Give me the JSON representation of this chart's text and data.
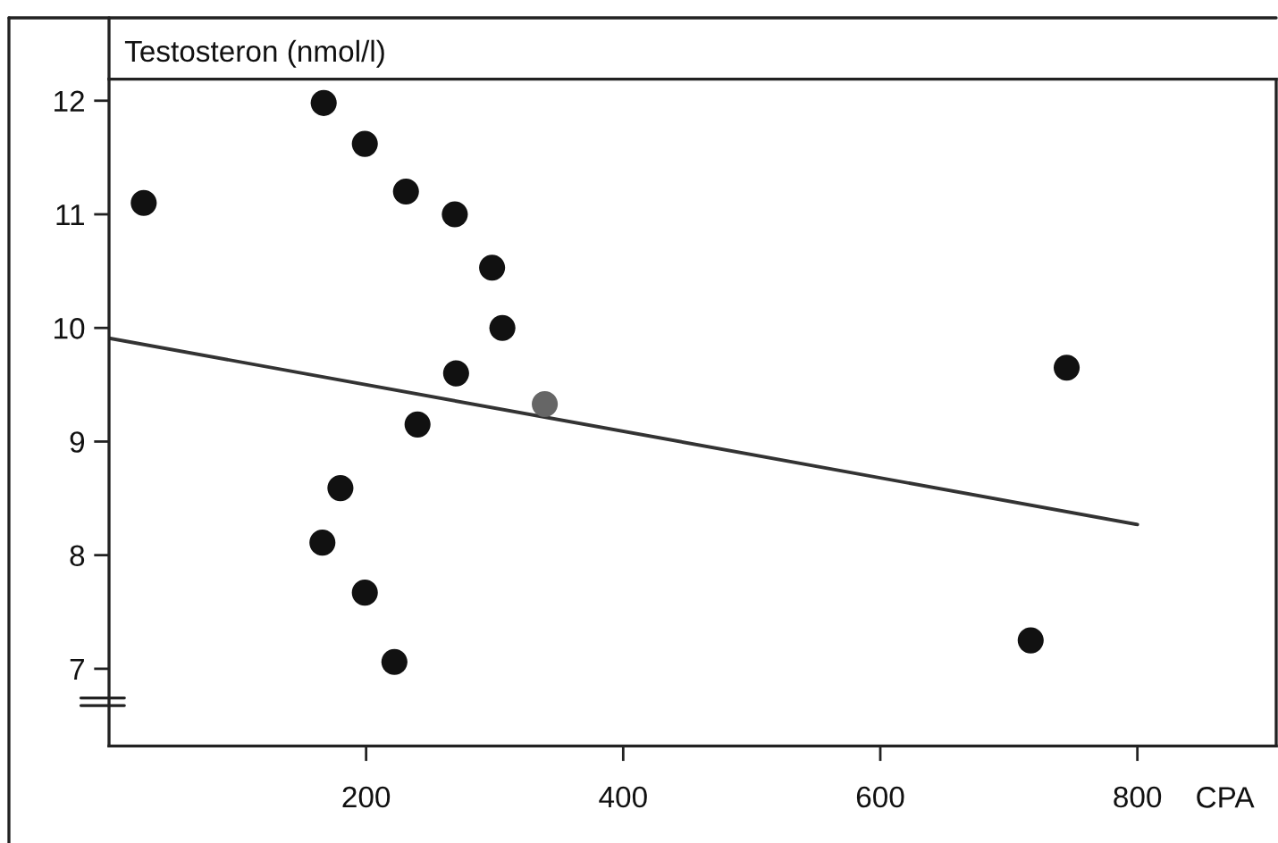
{
  "chart_data": {
    "type": "scatter",
    "ylabel": "Testosteron (nmol/l)",
    "xlabel": "CPA",
    "xlim": [
      0,
      908
    ],
    "xticks": [
      200,
      400,
      600,
      800
    ],
    "ylim": [
      6.32,
      12.19
    ],
    "yticks": [
      7,
      8,
      9,
      10,
      11,
      12
    ],
    "grid": false,
    "series": [
      {
        "marker": "circle",
        "x": [
          27,
          167,
          199,
          231,
          269,
          298,
          306,
          270,
          240,
          339,
          180,
          166,
          199,
          222,
          745,
          717
        ],
        "values": [
          11.1,
          11.98,
          11.62,
          11.2,
          11.0,
          10.53,
          10.0,
          9.6,
          9.15,
          9.33,
          8.59,
          8.11,
          7.67,
          7.06,
          9.65,
          7.25
        ],
        "colors": [
          "#111111",
          "#111111",
          "#111111",
          "#111111",
          "#111111",
          "#111111",
          "#111111",
          "#111111",
          "#111111",
          "#666666",
          "#111111",
          "#111111",
          "#111111",
          "#111111",
          "#111111",
          "#111111"
        ]
      },
      {
        "type": "line",
        "x": [
          0,
          800
        ],
        "values": [
          9.91,
          8.27
        ],
        "color": "#333333",
        "line_style": "solid"
      }
    ]
  }
}
